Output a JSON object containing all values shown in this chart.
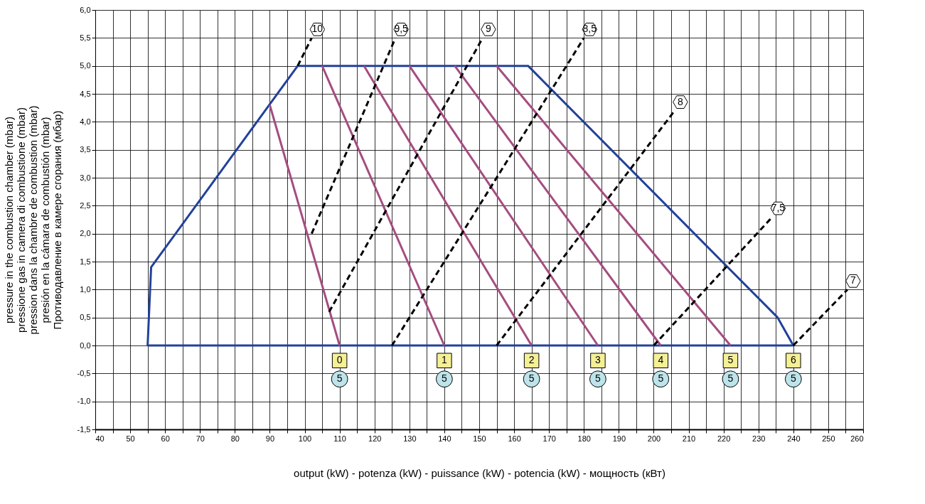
{
  "chart_data": {
    "type": "line",
    "xlabel": "output (kW) - potenza (kW) - puissance (kW) - potencia (kW) - мощность (кВт)",
    "ylabel": "pressure in the combustion chamber (mbar)\npressione gas in camera di combustione (mbar)\npression dans la chambre de combustion (mbar)\npresión en la cámara de combustión (mbar)\nПротиводавление в камере сгорания (мбар)",
    "xlim": [
      40,
      260
    ],
    "xticks": [
      40,
      {
        "value": 45,
        "label": null
      },
      50,
      {
        "value": 55,
        "label": null
      },
      60,
      {
        "value": 65,
        "label": null
      },
      70,
      {
        "value": 75,
        "label": null
      },
      80,
      {
        "value": 85,
        "label": null
      },
      90,
      {
        "value": 95,
        "label": null
      },
      100,
      {
        "value": 105,
        "label": null
      },
      110,
      {
        "value": 115,
        "label": null
      },
      120,
      {
        "value": 125,
        "label": null
      },
      130,
      {
        "value": 135,
        "label": null
      },
      140,
      {
        "value": 145,
        "label": null
      },
      150,
      {
        "value": 155,
        "label": null
      },
      160,
      {
        "value": 165,
        "label": null
      },
      170,
      {
        "value": 175,
        "label": null
      },
      180,
      {
        "value": 185,
        "label": null
      },
      190,
      {
        "value": 195,
        "label": null
      },
      200,
      {
        "value": 205,
        "label": null
      },
      210,
      {
        "value": 215,
        "label": null
      },
      220,
      {
        "value": 225,
        "label": null
      },
      230,
      {
        "value": 235,
        "label": null
      },
      240,
      {
        "value": 245,
        "label": null
      },
      250,
      {
        "value": 255,
        "label": null
      },
      260
    ],
    "ylim": [
      -1.5,
      6.0
    ],
    "yticks": [
      {
        "value": -1.5,
        "label": "-1,5"
      },
      {
        "value": -1.0,
        "label": "-1,0"
      },
      {
        "value": -0.5,
        "label": "-0,5"
      },
      {
        "value": 0,
        "label": "0,0"
      },
      {
        "value": 0.5,
        "label": "0,5"
      },
      {
        "value": 1.0,
        "label": "1,0"
      },
      {
        "value": 1.5,
        "label": "1,5"
      },
      {
        "value": 2.0,
        "label": "2,0"
      },
      {
        "value": 2.5,
        "label": "2,5"
      },
      {
        "value": 3.0,
        "label": "3,0"
      },
      {
        "value": 3.5,
        "label": "3,5"
      },
      {
        "value": 4.0,
        "label": "4,0"
      },
      {
        "value": 4.5,
        "label": "4,5"
      },
      {
        "value": 5.0,
        "label": "5,0"
      },
      {
        "value": 5.5,
        "label": "5,5"
      },
      {
        "value": 6.0,
        "label": "6,0"
      }
    ],
    "grid": true,
    "legend": false,
    "marker": "none",
    "series": [
      {
        "color": "#22419a",
        "line_style": "solid",
        "x": [
          55,
          56,
          98,
          164,
          235.5,
          240
        ],
        "values": [
          0,
          1.4,
          5.0,
          5.0,
          0.5,
          0
        ]
      },
      {
        "color": "#22419a",
        "line_style": "solid",
        "x": [
          55,
          240
        ],
        "values": [
          0,
          0
        ]
      },
      {
        "color": "#a44d80",
        "line_style": "solid",
        "x": [
          90,
          110
        ],
        "values": [
          4.3,
          0
        ]
      },
      {
        "color": "#a44d80",
        "line_style": "solid",
        "x": [
          105,
          140
        ],
        "values": [
          5.0,
          0
        ]
      },
      {
        "color": "#a44d80",
        "line_style": "solid",
        "x": [
          117,
          165
        ],
        "values": [
          5.0,
          0
        ]
      },
      {
        "color": "#a44d80",
        "line_style": "solid",
        "x": [
          130,
          184
        ],
        "values": [
          5.0,
          0
        ]
      },
      {
        "color": "#a44d80",
        "line_style": "solid",
        "x": [
          143,
          202
        ],
        "values": [
          5.0,
          0
        ]
      },
      {
        "color": "#a44d80",
        "line_style": "solid",
        "x": [
          155,
          222
        ],
        "values": [
          5.0,
          0
        ]
      },
      {
        "name": "10",
        "color": "#000000",
        "line_style": "dashed",
        "x": [
          98,
          102
        ],
        "values": [
          5.0,
          5.5
        ]
      },
      {
        "name": "9,5",
        "color": "#000000",
        "line_style": "dashed",
        "x": [
          102,
          126
        ],
        "values": [
          2.0,
          5.5
        ]
      },
      {
        "name": "9",
        "color": "#000000",
        "line_style": "dashed",
        "x": [
          107,
          151
        ],
        "values": [
          0.6,
          5.5
        ]
      },
      {
        "name": "8,5",
        "color": "#000000",
        "line_style": "dashed",
        "x": [
          125,
          180
        ],
        "values": [
          0,
          5.5
        ]
      },
      {
        "name": "8",
        "color": "#000000",
        "line_style": "dashed",
        "x": [
          155,
          206
        ],
        "values": [
          0,
          4.2
        ]
      },
      {
        "name": "7,5",
        "color": "#000000",
        "line_style": "dashed",
        "x": [
          200,
          234
        ],
        "values": [
          0,
          2.3
        ]
      },
      {
        "name": "7",
        "color": "#000000",
        "line_style": "dashed",
        "x": [
          240,
          255.5
        ],
        "values": [
          0,
          1.0
        ]
      }
    ],
    "annotations": [
      {
        "text": "0",
        "x": 110,
        "y": -0.27
      },
      {
        "text": "1",
        "x": 140,
        "y": -0.27
      },
      {
        "text": "2",
        "x": 165,
        "y": -0.27
      },
      {
        "text": "3",
        "x": 184,
        "y": -0.27
      },
      {
        "text": "4",
        "x": 202,
        "y": -0.27
      },
      {
        "text": "5",
        "x": 222,
        "y": -0.27
      },
      {
        "text": "6",
        "x": 240,
        "y": -0.27
      },
      {
        "text": "5",
        "x": 110,
        "y": -0.6
      },
      {
        "text": "5",
        "x": 140,
        "y": -0.6
      },
      {
        "text": "5",
        "x": 165,
        "y": -0.6
      },
      {
        "text": "5",
        "x": 184,
        "y": -0.6
      },
      {
        "text": "5",
        "x": 202,
        "y": -0.6
      },
      {
        "text": "5",
        "x": 222,
        "y": -0.6
      },
      {
        "text": "5",
        "x": 240,
        "y": -0.6
      }
    ]
  }
}
